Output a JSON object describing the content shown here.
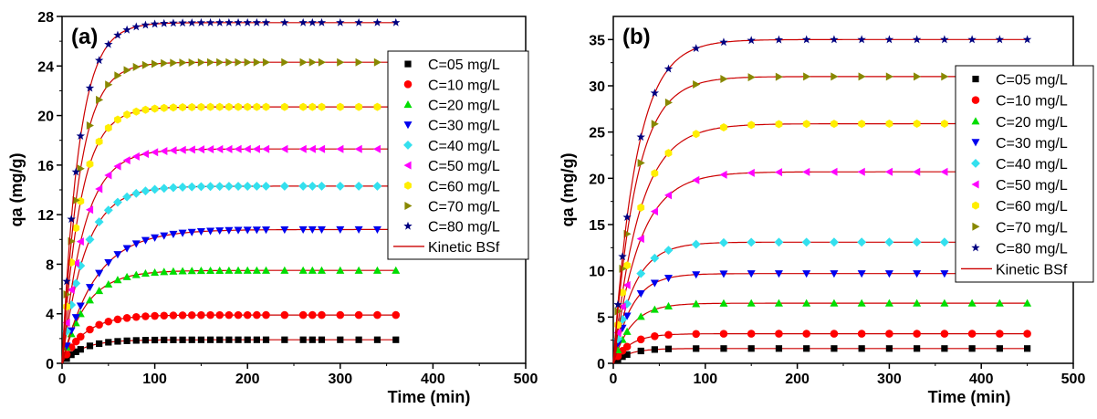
{
  "chart_data": [
    {
      "type": "scatter",
      "panel_label": "(a)",
      "xlabel": "Time (min)",
      "ylabel": "qa (mg/g)",
      "xlim": [
        0,
        500
      ],
      "ylim": [
        0,
        28
      ],
      "xticks": [
        "0",
        "100",
        "200",
        "300",
        "400",
        "500"
      ],
      "yticks": [
        "0",
        "4",
        "8",
        "12",
        "16",
        "20",
        "24",
        "28"
      ],
      "legend_position": "right",
      "x": [
        5,
        10,
        15,
        20,
        30,
        40,
        50,
        60,
        70,
        80,
        90,
        100,
        110,
        120,
        130,
        140,
        150,
        160,
        170,
        180,
        190,
        200,
        210,
        220,
        240,
        260,
        270,
        280,
        300,
        320,
        340,
        360
      ],
      "series": [
        {
          "name": "C=05 mg/L",
          "marker": "square",
          "color": "#000000",
          "plateau": 1.9,
          "rate": 0.045
        },
        {
          "name": "C=10 mg/L",
          "marker": "circle",
          "color": "#ff0000",
          "plateau": 3.9,
          "rate": 0.04
        },
        {
          "name": "C=20 mg/L",
          "marker": "triangle-up",
          "color": "#00dd00",
          "plateau": 7.5,
          "rate": 0.038
        },
        {
          "name": "C=30 mg/L",
          "marker": "triangle-down",
          "color": "#0000ee",
          "plateau": 10.8,
          "rate": 0.028
        },
        {
          "name": "C=40 mg/L",
          "marker": "diamond",
          "color": "#33e0ee",
          "plateau": 14.3,
          "rate": 0.04
        },
        {
          "name": "C=50 mg/L",
          "marker": "triangle-left",
          "color": "#ff00ff",
          "plateau": 17.3,
          "rate": 0.042
        },
        {
          "name": "C=60 mg/L",
          "marker": "hexagon",
          "color": "#ffee00",
          "plateau": 20.7,
          "rate": 0.05
        },
        {
          "name": "C=70 mg/L",
          "marker": "triangle-right",
          "color": "#888800",
          "plateau": 24.3,
          "rate": 0.052
        },
        {
          "name": "C=80 mg/L",
          "marker": "star",
          "color": "#000080",
          "plateau": 27.5,
          "rate": 0.055
        }
      ],
      "fit_legend": "Kinetic BSf",
      "fit_color": "#cc0000"
    },
    {
      "type": "scatter",
      "panel_label": "(b)",
      "xlabel": "Time (min)",
      "ylabel": "qa (mg/g)",
      "xlim": [
        0,
        500
      ],
      "ylim": [
        0,
        37.5
      ],
      "xticks": [
        "0",
        "100",
        "200",
        "300",
        "400",
        "500"
      ],
      "yticks": [
        "0",
        "5",
        "10",
        "15",
        "20",
        "25",
        "30",
        "35"
      ],
      "legend_position": "right",
      "x": [
        5,
        10,
        15,
        30,
        45,
        60,
        90,
        120,
        150,
        180,
        210,
        240,
        270,
        300,
        330,
        360,
        390,
        420,
        450
      ],
      "series": [
        {
          "name": "C=05 mg/L",
          "marker": "square",
          "color": "#000000",
          "plateau": 1.6,
          "rate": 0.06
        },
        {
          "name": "C=10 mg/L",
          "marker": "circle",
          "color": "#ff0000",
          "plateau": 3.2,
          "rate": 0.055
        },
        {
          "name": "C=20 mg/L",
          "marker": "triangle-up",
          "color": "#00dd00",
          "plateau": 6.5,
          "rate": 0.05
        },
        {
          "name": "C=30 mg/L",
          "marker": "triangle-down",
          "color": "#0000ee",
          "plateau": 9.7,
          "rate": 0.05
        },
        {
          "name": "C=40 mg/L",
          "marker": "diamond",
          "color": "#33e0ee",
          "plateau": 13.1,
          "rate": 0.045
        },
        {
          "name": "C=50 mg/L",
          "marker": "triangle-left",
          "color": "#ff00ff",
          "plateau": 20.7,
          "rate": 0.035,
          "xmax": 420
        },
        {
          "name": "C=60 mg/L",
          "marker": "hexagon",
          "color": "#ffee00",
          "plateau": 25.9,
          "rate": 0.035
        },
        {
          "name": "C=70 mg/L",
          "marker": "triangle-right",
          "color": "#888800",
          "plateau": 31.0,
          "rate": 0.04
        },
        {
          "name": "C=80 mg/L",
          "marker": "star",
          "color": "#000080",
          "plateau": 35.0,
          "rate": 0.04
        }
      ],
      "fit_legend": "Kinetic BSf",
      "fit_color": "#cc0000"
    }
  ]
}
